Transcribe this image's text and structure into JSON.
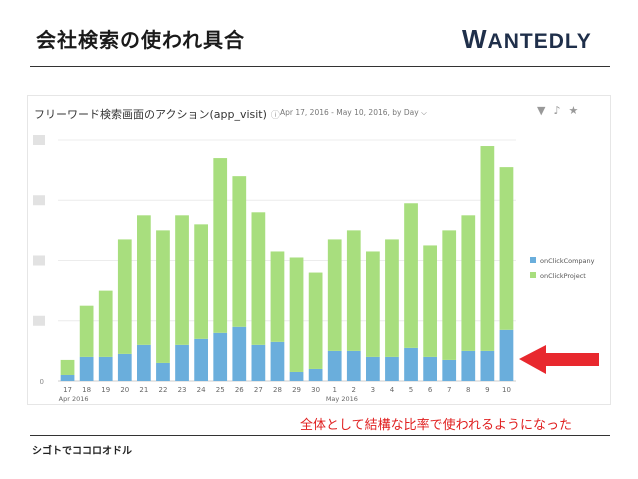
{
  "slide": {
    "title": "会社検索の使われ具合",
    "logo_initial": "W",
    "logo_rest": "ANTEDLY",
    "footer": "シゴトでココロオドル",
    "caption": "全体として結構な比率で使われるようになった"
  },
  "panel": {
    "title": "フリーワード検索画面のアクション(app_visit)",
    "info_icon": "info-icon",
    "date_range": "Apr 17, 2016 - May 10, 2016, by Day ⌵"
  },
  "chart_data": {
    "type": "bar",
    "stacked": true,
    "categories": [
      "17",
      "18",
      "19",
      "20",
      "21",
      "22",
      "23",
      "24",
      "25",
      "26",
      "27",
      "28",
      "29",
      "30",
      "1",
      "2",
      "3",
      "4",
      "5",
      "6",
      "7",
      "8",
      "9",
      "10"
    ],
    "month_labels": [
      {
        "at": "17",
        "text": "Apr 2016"
      },
      {
        "at": "1",
        "text": "May 2016"
      }
    ],
    "series": [
      {
        "name": "onClickCompany",
        "color": "#6aaedc",
        "values": [
          2,
          8,
          8,
          9,
          12,
          6,
          12,
          14,
          16,
          18,
          12,
          13,
          3,
          4,
          10,
          10,
          8,
          8,
          11,
          8,
          7,
          10,
          10,
          17
        ]
      },
      {
        "name": "onClickProject",
        "color": "#a8de7e",
        "values": [
          5,
          17,
          22,
          38,
          43,
          44,
          43,
          38,
          58,
          50,
          44,
          30,
          38,
          32,
          37,
          40,
          35,
          39,
          48,
          37,
          43,
          45,
          68,
          54
        ]
      }
    ],
    "yticks": [
      "",
      "",
      "",
      "",
      "0"
    ],
    "ylim": [
      0,
      80
    ],
    "grid": true,
    "legend_position": "right",
    "annotation": "red arrow pointing at onClickCompany bars"
  }
}
